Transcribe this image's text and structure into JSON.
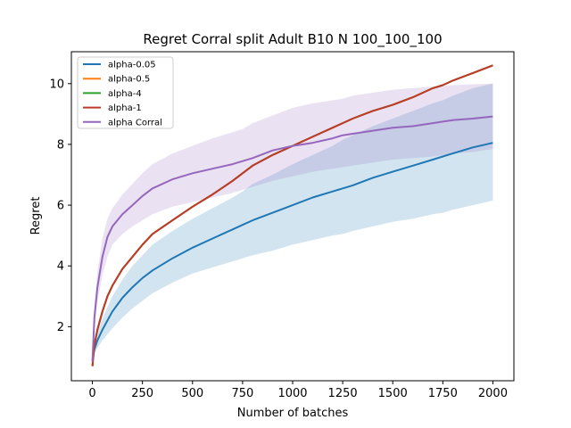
{
  "chart_data": {
    "type": "line",
    "title": "Regret Corral split Adult B10 N 100_100_100",
    "xlabel": "Number of batches",
    "ylabel": "Regret",
    "xlim": [
      -105,
      2105
    ],
    "ylim": [
      0.22,
      11.05
    ],
    "x_ticks": [
      0,
      250,
      500,
      750,
      1000,
      1250,
      1500,
      1750,
      2000
    ],
    "y_ticks": [
      2,
      4,
      6,
      8,
      10
    ],
    "legend_position": "upper-left",
    "grid": false,
    "x": [
      0,
      10,
      25,
      50,
      75,
      100,
      150,
      200,
      250,
      300,
      400,
      500,
      600,
      700,
      750,
      800,
      900,
      1000,
      1100,
      1200,
      1250,
      1300,
      1400,
      1500,
      1600,
      1700,
      1750,
      1800,
      1900,
      2000
    ],
    "series": [
      {
        "name": "alpha-0.05",
        "color": "#1f77b4",
        "values": [
          0.9,
          1.25,
          1.55,
          1.9,
          2.2,
          2.5,
          2.95,
          3.3,
          3.6,
          3.85,
          4.25,
          4.6,
          4.9,
          5.2,
          5.35,
          5.5,
          5.75,
          6.0,
          6.25,
          6.45,
          6.55,
          6.65,
          6.9,
          7.1,
          7.3,
          7.5,
          7.6,
          7.7,
          7.9,
          8.05
        ],
        "band_lower": [
          0.8,
          1.1,
          1.3,
          1.55,
          1.75,
          1.95,
          2.3,
          2.6,
          2.85,
          3.1,
          3.45,
          3.75,
          3.95,
          4.15,
          4.25,
          4.35,
          4.5,
          4.7,
          4.85,
          5.0,
          5.05,
          5.15,
          5.3,
          5.45,
          5.55,
          5.7,
          5.75,
          5.85,
          6.0,
          6.15
        ],
        "band_upper": [
          1.0,
          1.4,
          1.8,
          2.25,
          2.65,
          3.0,
          3.55,
          4.0,
          4.35,
          4.7,
          5.15,
          5.55,
          5.9,
          6.25,
          6.45,
          6.7,
          7.0,
          7.35,
          7.65,
          7.95,
          8.15,
          8.3,
          8.6,
          8.85,
          9.1,
          9.35,
          9.45,
          9.6,
          9.85,
          10.0
        ]
      },
      {
        "name": "alpha-0.5",
        "color": "#ff7f0e",
        "values": [
          0.7,
          1.4,
          1.9,
          2.5,
          3.0,
          3.35,
          3.9,
          4.3,
          4.7,
          5.05,
          5.5,
          5.95,
          6.35,
          6.8,
          7.05,
          7.3,
          7.65,
          7.95,
          8.25,
          8.55,
          8.7,
          8.85,
          9.1,
          9.3,
          9.55,
          9.85,
          9.95,
          10.1,
          10.35,
          10.6
        ]
      },
      {
        "name": "alpha-4",
        "color": "#2ca02c",
        "values": [
          0.7,
          1.4,
          1.9,
          2.5,
          3.0,
          3.35,
          3.9,
          4.3,
          4.7,
          5.05,
          5.5,
          5.95,
          6.35,
          6.8,
          7.05,
          7.3,
          7.65,
          7.95,
          8.25,
          8.55,
          8.7,
          8.85,
          9.1,
          9.3,
          9.55,
          9.85,
          9.95,
          10.1,
          10.35,
          10.6
        ]
      },
      {
        "name": "alpha-1",
        "color": "#c0392b",
        "values": [
          0.7,
          1.4,
          1.9,
          2.5,
          3.0,
          3.35,
          3.9,
          4.3,
          4.7,
          5.05,
          5.5,
          5.95,
          6.35,
          6.8,
          7.05,
          7.3,
          7.65,
          7.95,
          8.25,
          8.55,
          8.7,
          8.85,
          9.1,
          9.3,
          9.55,
          9.85,
          9.95,
          10.1,
          10.35,
          10.6
        ]
      },
      {
        "name": "alpha Corral",
        "color": "#9467bd",
        "values": [
          0.85,
          2.3,
          3.3,
          4.3,
          4.95,
          5.3,
          5.7,
          6.0,
          6.3,
          6.55,
          6.85,
          7.05,
          7.2,
          7.35,
          7.45,
          7.55,
          7.8,
          7.95,
          8.05,
          8.2,
          8.3,
          8.35,
          8.45,
          8.55,
          8.6,
          8.7,
          8.75,
          8.8,
          8.85,
          8.92
        ],
        "band_lower": [
          0.75,
          1.9,
          2.8,
          3.7,
          4.3,
          4.7,
          5.05,
          5.3,
          5.5,
          5.7,
          5.95,
          6.1,
          6.25,
          6.4,
          6.5,
          6.6,
          6.8,
          6.95,
          7.1,
          7.2,
          7.25,
          7.3,
          7.4,
          7.5,
          7.55,
          7.6,
          7.65,
          7.7,
          7.75,
          7.85
        ],
        "band_upper": [
          0.95,
          2.7,
          3.8,
          4.9,
          5.55,
          5.9,
          6.35,
          6.7,
          7.05,
          7.35,
          7.7,
          7.95,
          8.2,
          8.4,
          8.5,
          8.7,
          8.95,
          9.2,
          9.35,
          9.45,
          9.5,
          9.6,
          9.7,
          9.8,
          9.85,
          9.9,
          9.92,
          9.95,
          9.98,
          10.0
        ]
      }
    ]
  }
}
